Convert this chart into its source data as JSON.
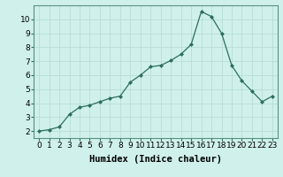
{
  "x": [
    0,
    1,
    2,
    3,
    4,
    5,
    6,
    7,
    8,
    9,
    10,
    11,
    12,
    13,
    14,
    15,
    16,
    17,
    18,
    19,
    20,
    21,
    22,
    23
  ],
  "y": [
    2.0,
    2.1,
    2.3,
    3.2,
    3.7,
    3.85,
    4.1,
    4.35,
    4.5,
    5.5,
    6.0,
    6.6,
    6.7,
    7.05,
    7.5,
    8.2,
    10.55,
    10.2,
    9.0,
    6.7,
    5.6,
    4.85,
    4.1,
    4.5
  ],
  "xlabel": "Humidex (Indice chaleur)",
  "xlim": [
    -0.5,
    23.5
  ],
  "ylim": [
    1.5,
    11.0
  ],
  "yticks": [
    2,
    3,
    4,
    5,
    6,
    7,
    8,
    9,
    10
  ],
  "xticks": [
    0,
    1,
    2,
    3,
    4,
    5,
    6,
    7,
    8,
    9,
    10,
    11,
    12,
    13,
    14,
    15,
    16,
    17,
    18,
    19,
    20,
    21,
    22,
    23
  ],
  "line_color": "#2d6e5e",
  "marker": "D",
  "marker_size": 2.0,
  "bg_color": "#cff0eb",
  "grid_color": "#b8ddd8",
  "xlabel_fontsize": 7.5,
  "tick_fontsize": 6.5
}
